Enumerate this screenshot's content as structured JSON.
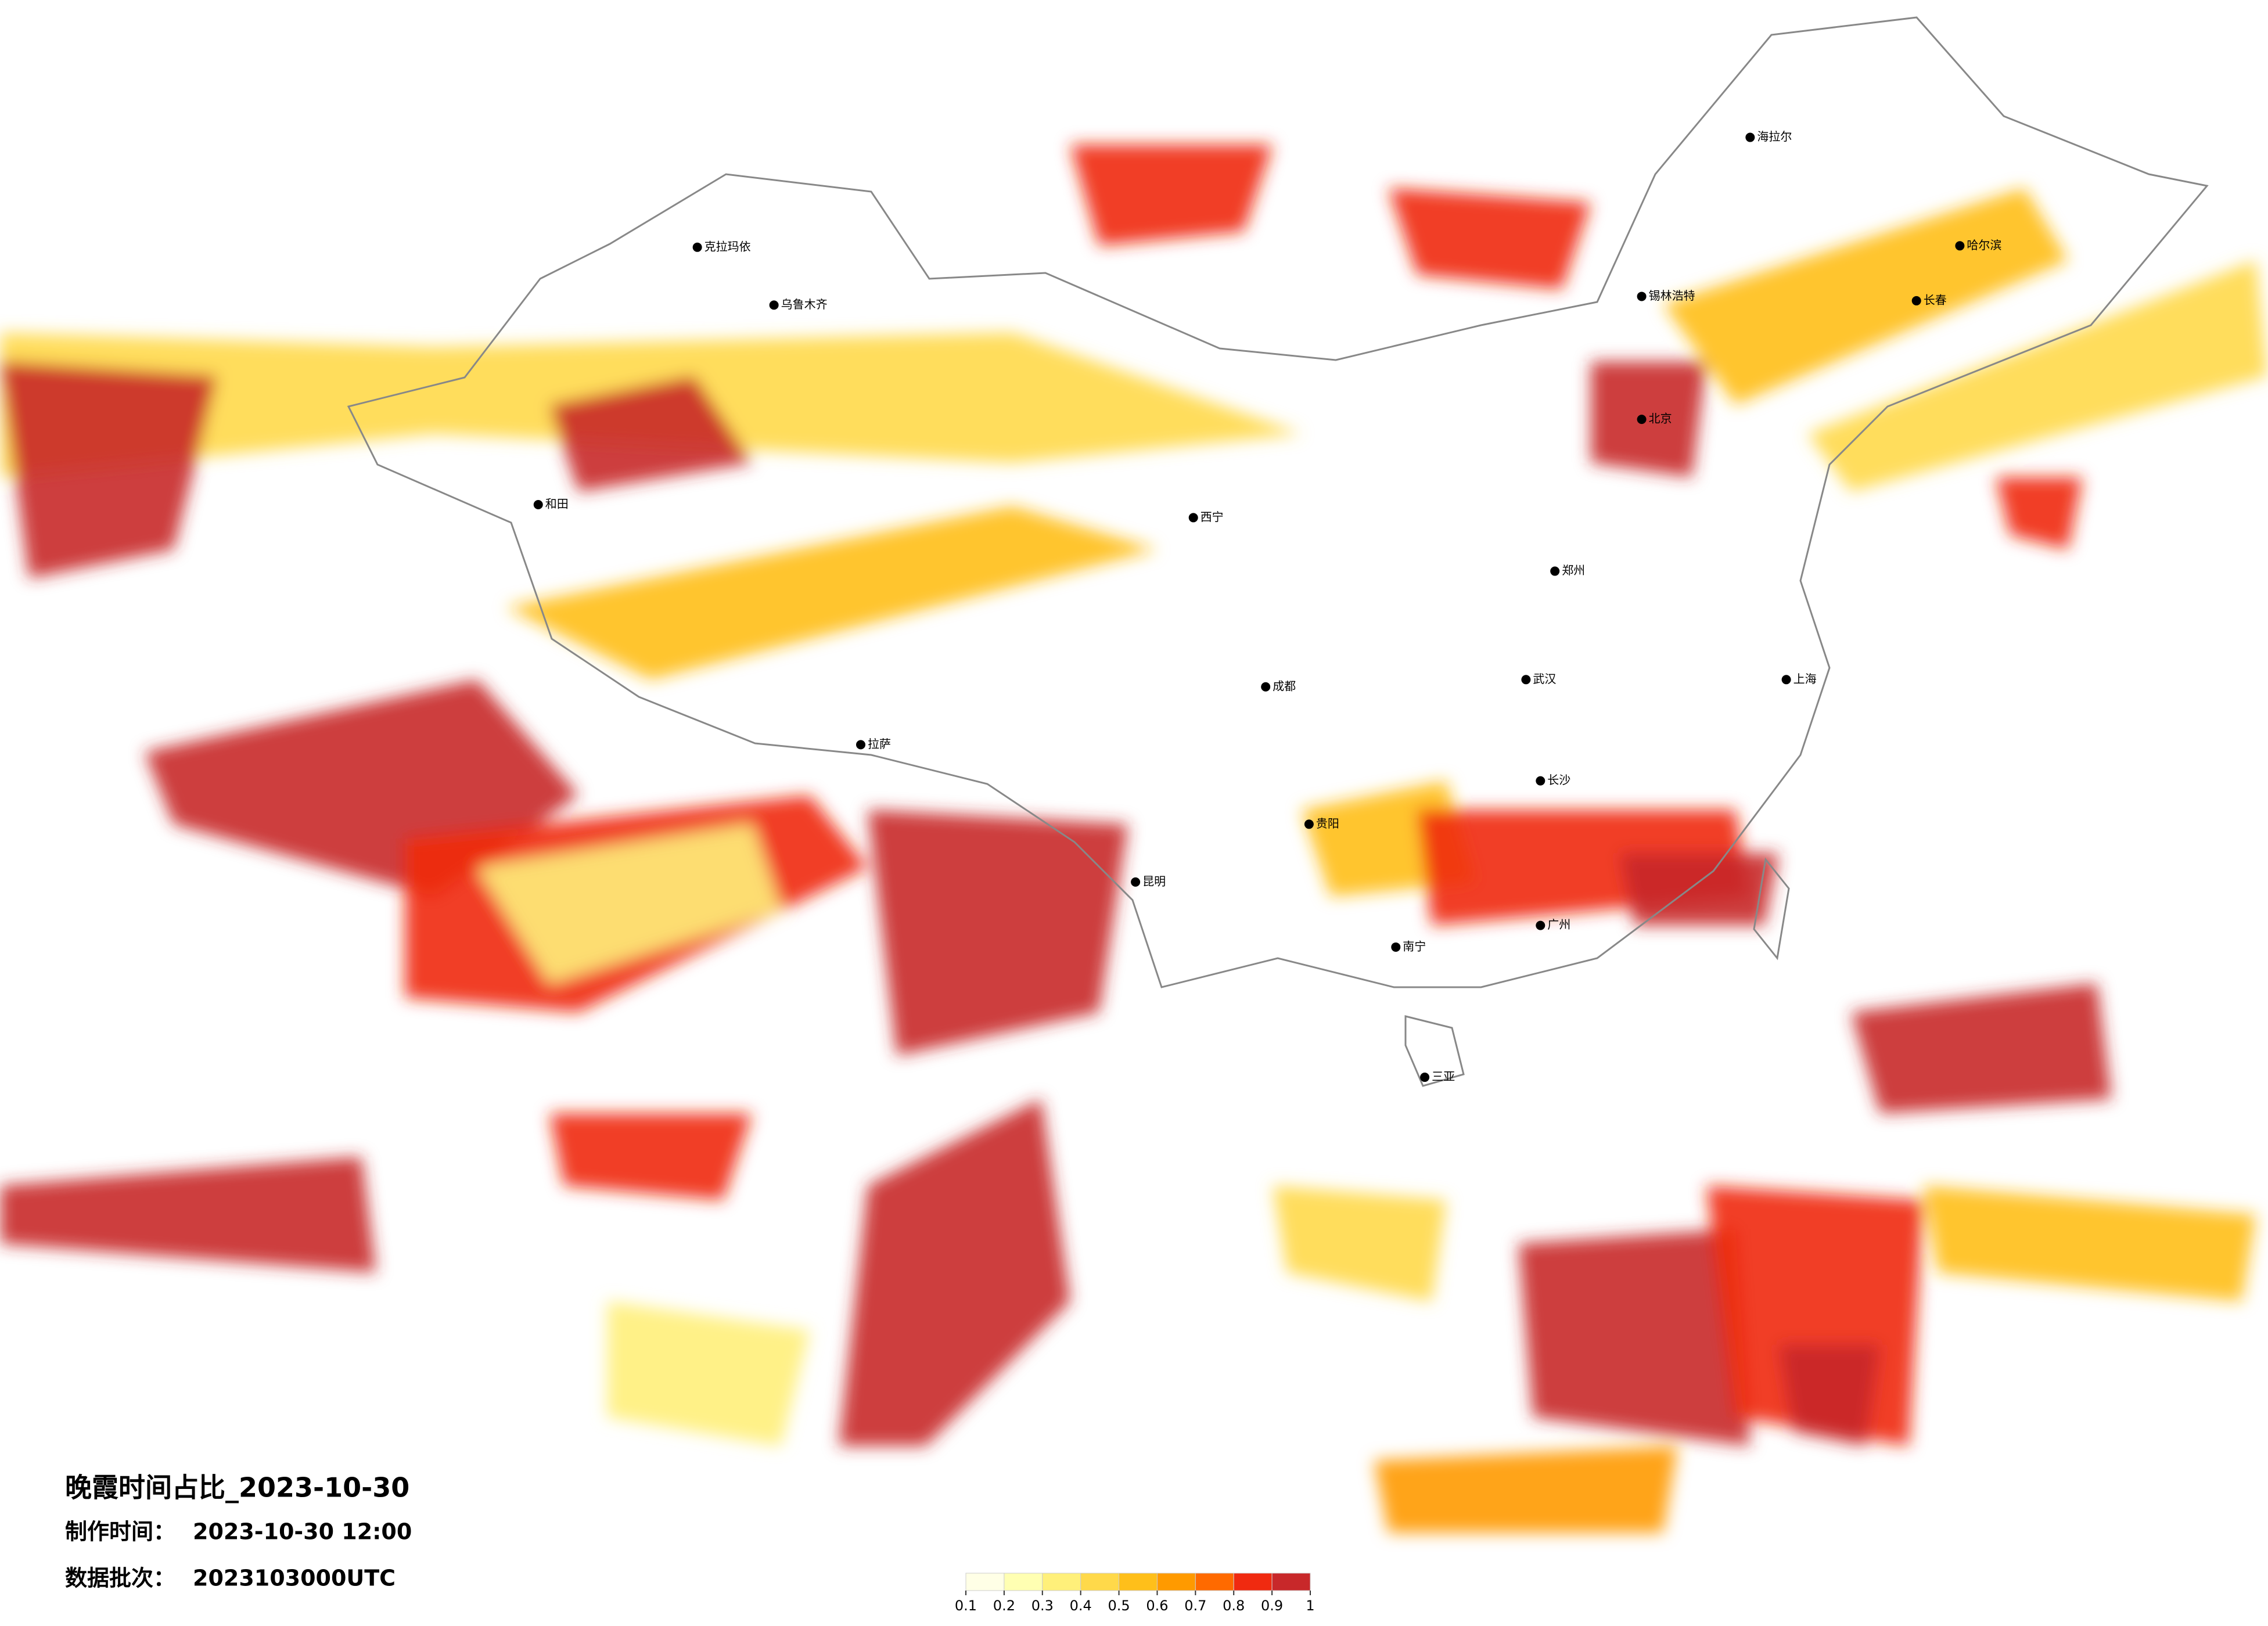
{
  "title": "晚霞时间占比_2023-10-30",
  "made_label": "制作时间：",
  "made_time": "2023-10-30 12:00",
  "batch_label": "数据批次：",
  "batch": "2023103000UTC",
  "colorbar": {
    "ticks": [
      0.1,
      0.2,
      0.3,
      0.4,
      0.5,
      0.6,
      0.7,
      0.8,
      0.9,
      1
    ],
    "colors": [
      "#ffffe6",
      "#ffffb2",
      "#fff07a",
      "#ffd94a",
      "#ffbf1a",
      "#ff9a00",
      "#ff6a00",
      "#f02a10",
      "#c8282a"
    ]
  },
  "cities": [
    "海拉尔",
    "哈尔滨",
    "长春",
    "锡林浩特",
    "北京",
    "郑州",
    "武汉",
    "上海",
    "长沙",
    "广州",
    "南宁",
    "贵阳",
    "昆明",
    "成都",
    "西宁",
    "乌鲁木齐",
    "克拉玛依",
    "和田",
    "拉萨",
    "三亚"
  ]
}
